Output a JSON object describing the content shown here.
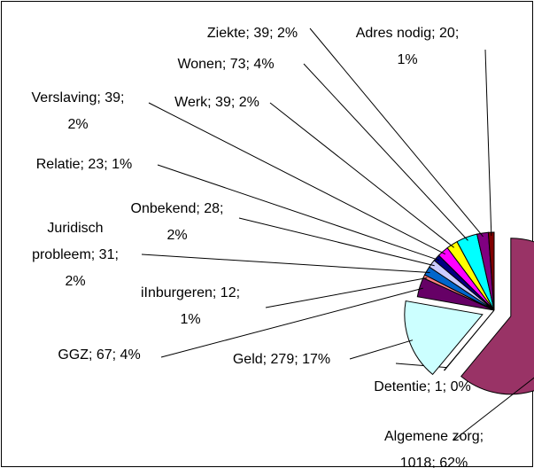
{
  "chart_data": {
    "type": "pie",
    "values": [
      1018,
      1,
      279,
      67,
      12,
      31,
      28,
      23,
      39,
      39,
      73,
      39,
      20
    ],
    "value_labels": [
      [
        "Algemene zorg;",
        "1018; 62%"
      ],
      [
        "Detentie; 1; 0%"
      ],
      [
        "Geld; 279; 17%"
      ],
      [
        "GGZ; 67; 4%"
      ],
      [
        "iInburgeren; 12;",
        "1%"
      ],
      [
        "Juridisch",
        "probleem; 31;",
        "2%"
      ],
      [
        "Onbekend; 28;",
        "2%"
      ],
      [
        "Relatie; 23; 1%"
      ],
      [
        "Verslaving; 39;",
        "2%"
      ],
      [
        "Werk; 39; 2%"
      ],
      [
        "Wonen; 73; 4%"
      ],
      [
        "Ziekte; 39; 2%"
      ],
      [
        "Adres nodig; 20;",
        "1%"
      ]
    ],
    "colors": [
      "#993366",
      "#ffffcc",
      "#ccffff",
      "#660066",
      "#ff8080",
      "#0066cc",
      "#ccccff",
      "#000080",
      "#ff00ff",
      "#ffff00",
      "#00ffff",
      "#800080",
      "#800000"
    ]
  }
}
